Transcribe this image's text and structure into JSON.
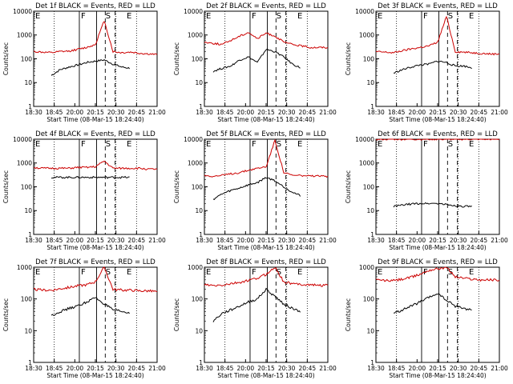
{
  "chart_data": [
    {
      "type": "line",
      "title": "Det 1f BLACK = Events, RED = LLD",
      "xlabel": "Start Time (08-Mar-15 18:24:40)",
      "ylabel": "Counts/sec",
      "y_scale": "log",
      "ylim": [
        1,
        10000
      ],
      "xlim": [
        "18:30",
        "21:00"
      ],
      "xticks": [
        "18:30",
        "18:45",
        "20:00",
        "20:15",
        "20:30",
        "20:45",
        "21:00"
      ],
      "yticks": [
        "1",
        "10",
        "100",
        "1000",
        "10000"
      ],
      "markers": [
        {
          "label": "E",
          "x": "18:30"
        },
        {
          "label": "F",
          "x": "20:00"
        },
        {
          "label": "S",
          "x": "20:26"
        },
        {
          "label": "E",
          "x": "20:47"
        }
      ],
      "series": [
        {
          "name": "Events",
          "color": "#000000",
          "values": [
            null,
            null,
            20,
            35,
            45,
            55,
            70,
            80,
            90,
            60,
            45,
            40,
            null,
            null,
            null
          ]
        },
        {
          "name": "LLD",
          "color": "#cc0000",
          "values": [
            200,
            190,
            180,
            200,
            210,
            250,
            300,
            400,
            4000,
            200,
            180,
            190,
            170,
            160,
            150
          ]
        }
      ]
    },
    {
      "type": "line",
      "title": "Det 2f BLACK = Events, RED = LLD",
      "xlabel": "Start Time (08-Mar-15 18:24:40)",
      "ylabel": "Counts/sec",
      "y_scale": "log",
      "ylim": [
        1,
        10000
      ],
      "xlim": [
        "18:30",
        "21:00"
      ],
      "xticks": [
        "18:30",
        "18:45",
        "20:00",
        "20:15",
        "20:30",
        "20:45",
        "21:00"
      ],
      "yticks": [
        "1",
        "10",
        "100",
        "1000",
        "10000"
      ],
      "markers": [
        {
          "label": "E",
          "x": "18:30"
        },
        {
          "label": "F",
          "x": "20:00"
        },
        {
          "label": "S",
          "x": "20:26"
        },
        {
          "label": "E",
          "x": "20:47"
        }
      ],
      "series": [
        {
          "name": "Events",
          "color": "#000000",
          "values": [
            null,
            30,
            40,
            50,
            90,
            120,
            70,
            250,
            200,
            120,
            60,
            40,
            null,
            null,
            null
          ]
        },
        {
          "name": "LLD",
          "color": "#cc0000",
          "values": [
            500,
            450,
            400,
            600,
            900,
            1300,
            700,
            1200,
            900,
            500,
            400,
            350,
            300,
            300,
            300
          ]
        }
      ]
    },
    {
      "type": "line",
      "title": "Det 3f BLACK = Events, RED = LLD",
      "xlabel": "Start Time (08-Mar-15 18:24:40)",
      "ylabel": "Counts/sec",
      "y_scale": "log",
      "ylim": [
        1,
        10000
      ],
      "xlim": [
        "18:30",
        "21:00"
      ],
      "xticks": [
        "18:30",
        "18:45",
        "20:00",
        "20:15",
        "20:30",
        "20:45",
        "21:00"
      ],
      "yticks": [
        "1",
        "10",
        "100",
        "1000",
        "10000"
      ],
      "markers": [
        {
          "label": "E",
          "x": "18:30"
        },
        {
          "label": "F",
          "x": "20:00"
        },
        {
          "label": "S",
          "x": "20:26"
        },
        {
          "label": "E",
          "x": "20:47"
        }
      ],
      "series": [
        {
          "name": "Events",
          "color": "#000000",
          "values": [
            null,
            null,
            25,
            35,
            45,
            55,
            60,
            80,
            70,
            50,
            50,
            40,
            null,
            null,
            null
          ]
        },
        {
          "name": "LLD",
          "color": "#cc0000",
          "values": [
            200,
            190,
            180,
            220,
            260,
            300,
            350,
            500,
            6000,
            200,
            190,
            180,
            170,
            160,
            160
          ]
        }
      ]
    },
    {
      "type": "line",
      "title": "Det 4f BLACK = Events, RED = LLD",
      "xlabel": "Start Time (08-Mar-15 18:24:40)",
      "ylabel": "Counts/sec",
      "y_scale": "log",
      "ylim": [
        1,
        10000
      ],
      "xlim": [
        "18:30",
        "21:00"
      ],
      "xticks": [
        "18:30",
        "18:45",
        "20:00",
        "20:15",
        "20:30",
        "20:45",
        "21:00"
      ],
      "yticks": [
        "1",
        "10",
        "100",
        "1000",
        "10000"
      ],
      "markers": [
        {
          "label": "E",
          "x": "18:30"
        },
        {
          "label": "F",
          "x": "20:00"
        },
        {
          "label": "S",
          "x": "20:26"
        },
        {
          "label": "E",
          "x": "20:47"
        }
      ],
      "series": [
        {
          "name": "Events",
          "color": "#000000",
          "values": [
            null,
            null,
            250,
            250,
            250,
            250,
            250,
            250,
            250,
            250,
            250,
            250,
            null,
            null,
            null
          ]
        },
        {
          "name": "LLD",
          "color": "#cc0000",
          "values": [
            650,
            600,
            600,
            600,
            600,
            650,
            650,
            700,
            1200,
            600,
            600,
            600,
            600,
            550,
            550
          ]
        }
      ]
    },
    {
      "type": "line",
      "title": "Det 5f BLACK = Events, RED = LLD",
      "xlabel": "Start Time (08-Mar-15 18:24:40)",
      "ylabel": "Counts/sec",
      "y_scale": "log",
      "ylim": [
        1,
        10000
      ],
      "xlim": [
        "18:30",
        "21:00"
      ],
      "xticks": [
        "18:30",
        "18:45",
        "20:00",
        "20:15",
        "20:30",
        "20:45",
        "21:00"
      ],
      "yticks": [
        "1",
        "10",
        "100",
        "1000",
        "10000"
      ],
      "markers": [
        {
          "label": "E",
          "x": "18:30"
        },
        {
          "label": "F",
          "x": "20:00"
        },
        {
          "label": "S",
          "x": "20:26"
        },
        {
          "label": "E",
          "x": "20:47"
        }
      ],
      "series": [
        {
          "name": "Events",
          "color": "#000000",
          "values": [
            null,
            30,
            50,
            70,
            90,
            120,
            150,
            250,
            180,
            100,
            60,
            40,
            null,
            null,
            null
          ]
        },
        {
          "name": "LLD",
          "color": "#cc0000",
          "values": [
            300,
            280,
            300,
            350,
            400,
            500,
            600,
            700,
            9000,
            400,
            300,
            300,
            280,
            280,
            280
          ]
        }
      ]
    },
    {
      "type": "line",
      "title": "Det 6f BLACK = Events, RED = LLD",
      "xlabel": "Start Time (08-Mar-15 18:24:40)",
      "ylabel": "Counts/sec",
      "y_scale": "log",
      "ylim": [
        1,
        10000
      ],
      "xlim": [
        "18:30",
        "21:00"
      ],
      "xticks": [
        "18:30",
        "18:45",
        "20:00",
        "20:15",
        "20:30",
        "20:45",
        "21:00"
      ],
      "yticks": [
        "1",
        "10",
        "100",
        "1000",
        "10000"
      ],
      "markers": [
        {
          "label": "E",
          "x": "18:30"
        },
        {
          "label": "F",
          "x": "20:00"
        },
        {
          "label": "S",
          "x": "20:26"
        },
        {
          "label": "E",
          "x": "20:47"
        }
      ],
      "series": [
        {
          "name": "Events",
          "color": "#000000",
          "values": [
            null,
            null,
            15,
            17,
            19,
            20,
            20,
            20,
            18,
            16,
            15,
            15,
            null,
            null,
            null
          ]
        },
        {
          "name": "LLD",
          "color": "#cc0000",
          "values": [
            10000,
            10000,
            10000,
            10000,
            10000,
            10000,
            10000,
            10000,
            10000,
            10000,
            10000,
            10000,
            10000,
            10000,
            10000
          ]
        }
      ]
    },
    {
      "type": "line",
      "title": "Det 7f BLACK = Events, RED = LLD",
      "xlabel": "Start Time (08-Mar-15 18:24:40)",
      "ylabel": "Counts/sec",
      "y_scale": "log",
      "ylim": [
        1,
        1000
      ],
      "xlim": [
        "18:30",
        "21:00"
      ],
      "xticks": [
        "18:30",
        "18:45",
        "20:00",
        "20:15",
        "20:30",
        "20:45",
        "21:00"
      ],
      "yticks": [
        "1",
        "10",
        "100",
        "1000"
      ],
      "markers": [
        {
          "label": "E",
          "x": "18:30"
        },
        {
          "label": "F",
          "x": "20:00"
        },
        {
          "label": "S",
          "x": "20:26"
        },
        {
          "label": "E",
          "x": "20:47"
        }
      ],
      "series": [
        {
          "name": "Events",
          "color": "#000000",
          "values": [
            null,
            null,
            30,
            40,
            50,
            60,
            80,
            110,
            70,
            45,
            40,
            35,
            null,
            null,
            null
          ]
        },
        {
          "name": "LLD",
          "color": "#cc0000",
          "values": [
            200,
            190,
            190,
            210,
            230,
            260,
            280,
            350,
            1000,
            200,
            190,
            190,
            180,
            180,
            170
          ]
        }
      ]
    },
    {
      "type": "line",
      "title": "Det 8f BLACK = Events, RED = LLD",
      "xlabel": "Start Time (08-Mar-15 18:24:40)",
      "ylabel": "Counts/sec",
      "y_scale": "log",
      "ylim": [
        1,
        1000
      ],
      "xlim": [
        "18:30",
        "21:00"
      ],
      "xticks": [
        "18:30",
        "18:45",
        "20:00",
        "20:15",
        "20:30",
        "20:45",
        "21:00"
      ],
      "yticks": [
        "1",
        "10",
        "100",
        "1000"
      ],
      "markers": [
        {
          "label": "E",
          "x": "18:30"
        },
        {
          "label": "F",
          "x": "20:00"
        },
        {
          "label": "S",
          "x": "20:26"
        },
        {
          "label": "E",
          "x": "20:47"
        }
      ],
      "series": [
        {
          "name": "Events",
          "color": "#000000",
          "values": [
            null,
            20,
            35,
            45,
            60,
            80,
            100,
            200,
            120,
            70,
            50,
            40,
            null,
            null,
            null
          ]
        },
        {
          "name": "LLD",
          "color": "#cc0000",
          "values": [
            280,
            260,
            270,
            300,
            330,
            380,
            450,
            600,
            1000,
            350,
            300,
            290,
            280,
            270,
            270
          ]
        }
      ]
    },
    {
      "type": "line",
      "title": "Det 9f BLACK = Events, RED = LLD",
      "xlabel": "Start Time (08-Mar-15 18:24:40)",
      "ylabel": "Counts/sec",
      "y_scale": "log",
      "ylim": [
        1,
        1000
      ],
      "xlim": [
        "18:30",
        "21:00"
      ],
      "xticks": [
        "18:30",
        "18:45",
        "20:00",
        "20:15",
        "20:30",
        "20:45",
        "21:00"
      ],
      "yticks": [
        "1",
        "10",
        "100",
        "1000"
      ],
      "markers": [
        {
          "label": "E",
          "x": "18:30"
        },
        {
          "label": "F",
          "x": "20:00"
        },
        {
          "label": "S",
          "x": "20:26"
        },
        {
          "label": "E",
          "x": "20:47"
        }
      ],
      "series": [
        {
          "name": "Events",
          "color": "#000000",
          "values": [
            null,
            null,
            35,
            45,
            60,
            80,
            110,
            150,
            90,
            60,
            50,
            45,
            null,
            null,
            null
          ]
        },
        {
          "name": "LLD",
          "color": "#cc0000",
          "values": [
            400,
            380,
            380,
            420,
            480,
            600,
            800,
            900,
            1000,
            500,
            450,
            420,
            400,
            400,
            400
          ]
        }
      ]
    }
  ]
}
